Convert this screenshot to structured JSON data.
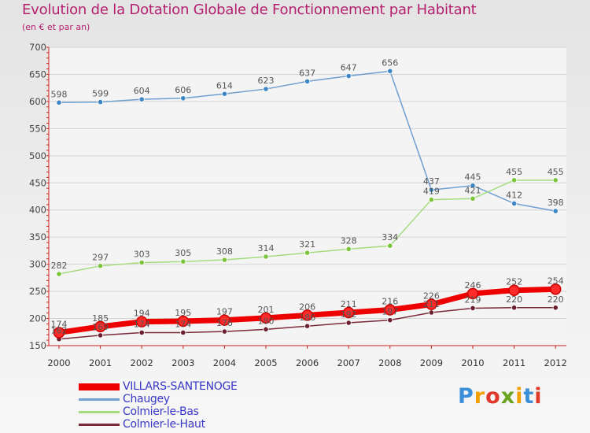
{
  "header": {
    "title": "Evolution de la Dotation Globale de Fonctionnement par Habitant",
    "subtitle": "(en € et par an)"
  },
  "logo": {
    "text": "Proxiti"
  },
  "colors": {
    "title": "#b5206e",
    "axis": "#cc2222",
    "legend_text": "#3838c8"
  },
  "chart_data": {
    "type": "line",
    "title": "Evolution de la Dotation Globale de Fonctionnement par Habitant",
    "subtitle": "(en € et par an)",
    "xlabel": "",
    "ylabel": "",
    "ylim": [
      150,
      700
    ],
    "y_ticks": [
      150,
      200,
      250,
      300,
      350,
      400,
      450,
      500,
      550,
      600,
      650,
      700
    ],
    "categories": [
      "2000",
      "2001",
      "2002",
      "2003",
      "2004",
      "2005",
      "2006",
      "2007",
      "2008",
      "2009",
      "2010",
      "2011",
      "2012"
    ],
    "legend_position": "bottom-left",
    "series": [
      {
        "name": "VILLARS-SANTENOGE",
        "color": "#ee0000",
        "marker": "#ff2a2a",
        "emphasis": true,
        "values": [
          174,
          185,
          194,
          195,
          197,
          201,
          206,
          211,
          216,
          226,
          246,
          252,
          254
        ],
        "labels": [
          "174",
          "185",
          "194",
          "195",
          "197",
          "201",
          "206",
          "211",
          "216",
          "226",
          "246",
          "252",
          "254"
        ]
      },
      {
        "name": "Chaugey",
        "color": "#6f9fd0",
        "marker": "#3d86c6",
        "emphasis": false,
        "values": [
          598,
          599,
          604,
          606,
          614,
          623,
          637,
          647,
          656,
          437,
          445,
          412,
          398
        ],
        "labels": [
          "598",
          "599",
          "604",
          "606",
          "614",
          "623",
          "637",
          "647",
          "656",
          "437",
          "445",
          "412",
          "398"
        ]
      },
      {
        "name": "Colmier-le-Bas",
        "color": "#a6dc80",
        "marker": "#7cc43a",
        "emphasis": false,
        "values": [
          282,
          297,
          303,
          305,
          308,
          314,
          321,
          328,
          334,
          419,
          421,
          455,
          455
        ],
        "labels": [
          "282",
          "297",
          "303",
          "305",
          "308",
          "314",
          "321",
          "328",
          "334",
          "419",
          "421",
          "455",
          "455"
        ]
      },
      {
        "name": "Colmier-le-Haut",
        "color": "#7a2a3a",
        "marker": "#6b1f2e",
        "emphasis": false,
        "values": [
          162,
          169,
          174,
          174,
          176,
          180,
          186,
          192,
          197,
          211,
          219,
          220,
          220
        ],
        "labels": [
          "162",
          "169",
          "174",
          "174",
          "176",
          "180",
          "186",
          "192",
          "197",
          "211",
          "219",
          "220",
          "220"
        ]
      }
    ]
  }
}
